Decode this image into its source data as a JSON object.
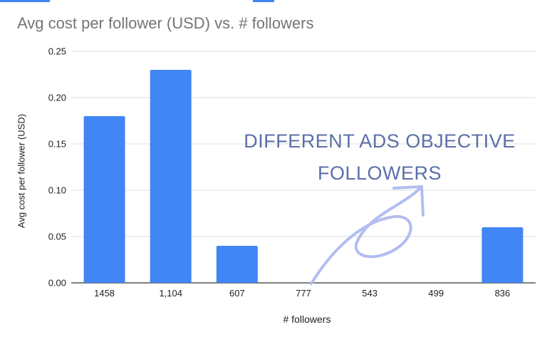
{
  "chart_data": {
    "type": "bar",
    "title": "Avg cost per follower (USD) vs. # followers",
    "xlabel": "# followers",
    "ylabel": "Avg cost per follower (USD)",
    "categories": [
      "1458",
      "1,104",
      "607",
      "777",
      "543",
      "499",
      "836"
    ],
    "values": [
      0.18,
      0.23,
      0.04,
      0,
      0,
      0,
      0.06
    ],
    "ylim": [
      0,
      0.25
    ],
    "yticks": [
      "0.00",
      "0.05",
      "0.10",
      "0.15",
      "0.20",
      "0.25"
    ],
    "grid": true,
    "legend": "none",
    "annotation": "DIFFERENT ADS OBJECTIVE FOLLOWERS"
  },
  "colors": {
    "bar": "#4285f4",
    "grid": "#dcdcdc",
    "baseline": "#333333",
    "annotation": "#5b6fa8",
    "arrow": "#b3bdf0"
  }
}
